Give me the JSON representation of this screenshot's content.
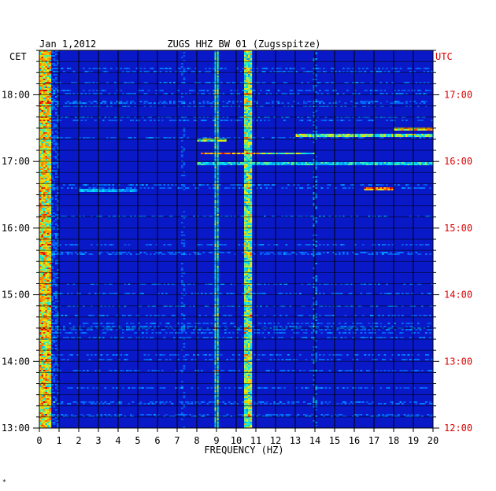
{
  "chart_data": {
    "type": "heatmap",
    "title": "ZUGS HHZ BW 01 (Zugsspitze)",
    "date_label": "Jan 1,2012",
    "left_axis_unit": "CET",
    "right_axis_unit": "UTC",
    "xlabel": "FREQUENCY (HZ)",
    "x_ticks": [
      "0",
      "1",
      "2",
      "3",
      "4",
      "5",
      "6",
      "7",
      "8",
      "9",
      "10",
      "11",
      "12",
      "13",
      "14",
      "15",
      "16",
      "17",
      "18",
      "19",
      "20"
    ],
    "xlim": [
      0,
      20
    ],
    "time_range_cet": [
      "13:00",
      "18:40"
    ],
    "left_ticks": [
      "13:00",
      "14:00",
      "15:00",
      "16:00",
      "17:00",
      "18:00"
    ],
    "right_ticks": [
      "12:00",
      "13:00",
      "14:00",
      "15:00",
      "16:00",
      "17:00"
    ],
    "colors": {
      "background": "#0a19c8",
      "low": "#0000a0",
      "mid": "#00c8ff",
      "high": "#ffff00",
      "peak": "#ff0000",
      "utc_text": "#dd0000",
      "grid": "#000000"
    },
    "notes_visible": {
      "persistent_lines_hz": [
        0.3,
        9.0,
        10.5,
        10.7
      ],
      "strong_event_cet": [
        "17:08",
        "17:22",
        "17:46",
        "16:30"
      ]
    }
  },
  "footer_mark": "*"
}
